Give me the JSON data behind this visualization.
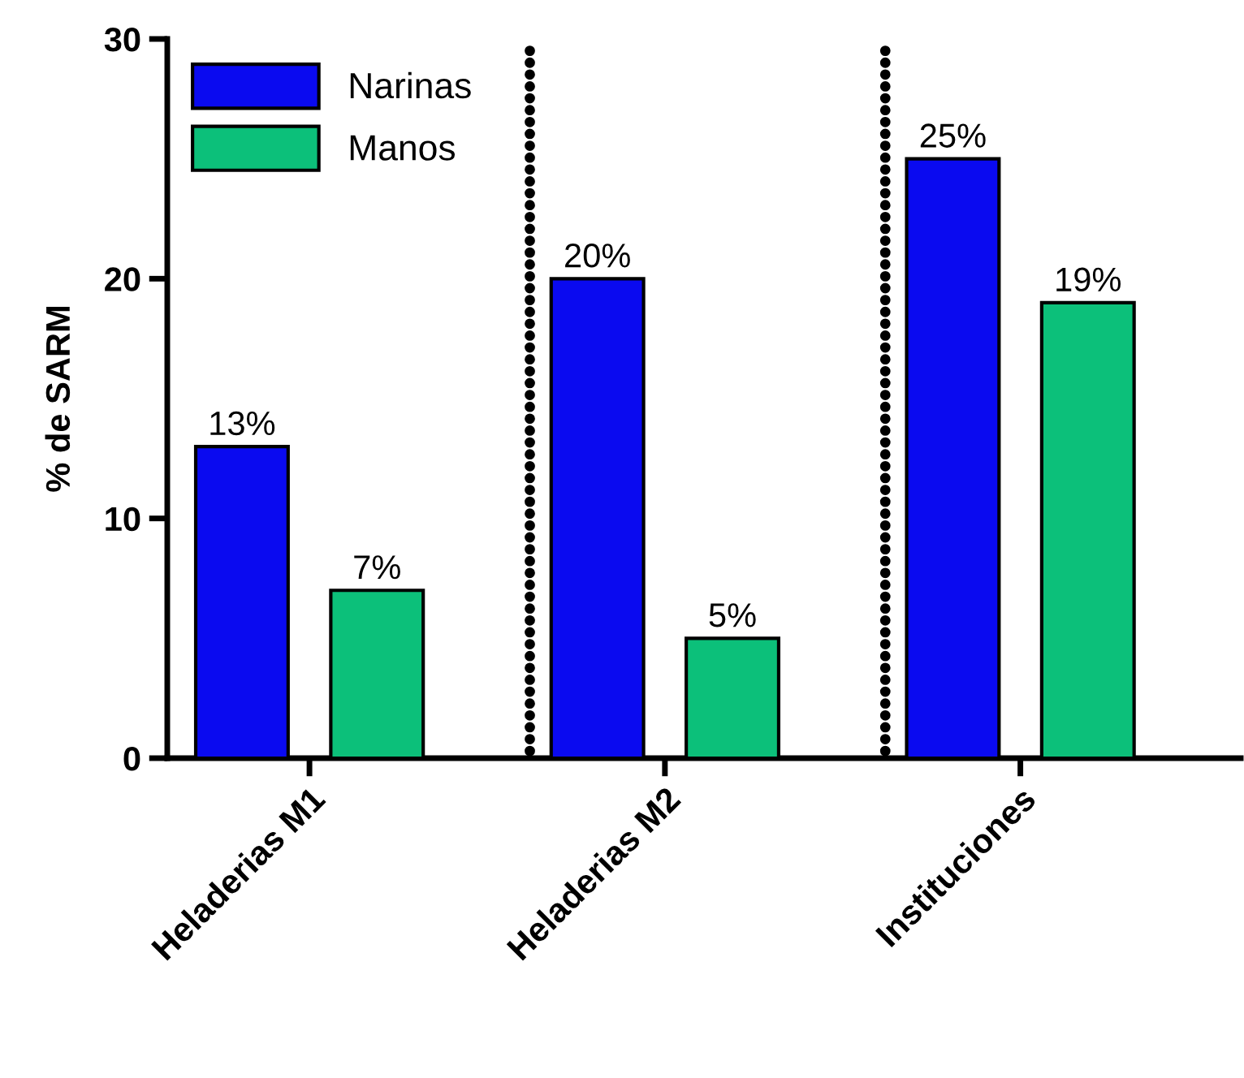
{
  "chart_data": {
    "type": "bar",
    "ylabel": "% de SARM",
    "categories": [
      "Heladerias M1",
      "Heladerias M2",
      "Instituciones"
    ],
    "series": [
      {
        "name": "Narinas",
        "color": "#0a0af0",
        "values": [
          13,
          20,
          25
        ],
        "value_labels": [
          "13%",
          "20%",
          "25%"
        ]
      },
      {
        "name": "Manos",
        "color": "#0cc07a",
        "values": [
          7,
          5,
          19
        ],
        "value_labels": [
          "7%",
          "5%",
          "19%"
        ]
      }
    ],
    "ylim": [
      0,
      30
    ],
    "yticks": [
      0,
      10,
      20,
      30
    ],
    "grid": false,
    "legend": "top left"
  }
}
